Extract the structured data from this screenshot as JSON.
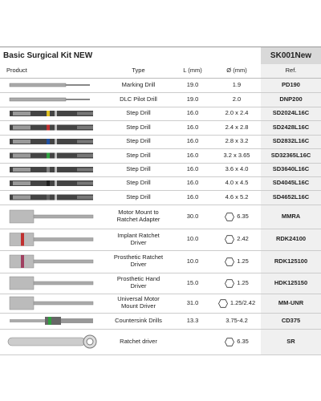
{
  "header": {
    "title": "Basic Surgical Kit NEW",
    "code": "SK001New"
  },
  "table": {
    "columns": [
      "Product",
      "Type",
      "L (mm)",
      "Ø (mm)",
      "Ref."
    ],
    "rows": [
      {
        "type": "Marking Drill",
        "length": "19.0",
        "diameter": "1.9",
        "ref": "PD190",
        "hex_icon": false
      },
      {
        "type": "DLC Pilot Drill",
        "length": "19.0",
        "diameter": "2.0",
        "ref": "DNP200",
        "hex_icon": false
      },
      {
        "type": "Step Drill",
        "length": "16.0",
        "diameter": "2.0 x 2.4",
        "ref": "SD2024L16C",
        "hex_icon": false
      },
      {
        "type": "Step Drill",
        "length": "16.0",
        "diameter": "2.4 x 2.8",
        "ref": "SD2428L16C",
        "hex_icon": false
      },
      {
        "type": "Step Drill",
        "length": "16.0",
        "diameter": "2.8 x 3.2",
        "ref": "SD2832L16C",
        "hex_icon": false
      },
      {
        "type": "Step Drill",
        "length": "16.0",
        "diameter": "3.2 x 3.65",
        "ref": "SD32365L16C",
        "hex_icon": false
      },
      {
        "type": "Step Drill",
        "length": "16.0",
        "diameter": "3.6 x 4.0",
        "ref": "SD3640L16C",
        "hex_icon": false
      },
      {
        "type": "Step Drill",
        "length": "16.0",
        "diameter": "4.0 x 4.5",
        "ref": "SD4045L16C",
        "hex_icon": false
      },
      {
        "type": "Step Drill",
        "length": "16.0",
        "diameter": "4.6 x 5.2",
        "ref": "SD4652L16C",
        "hex_icon": false
      },
      {
        "type": "Motor Mount to Ratchet Adapter",
        "length": "30.0",
        "diameter": "6.35",
        "ref": "MMRA",
        "hex_icon": true
      },
      {
        "type": "Implant Ratchet Driver",
        "length": "10.0",
        "diameter": "2.42",
        "ref": "RDK24100",
        "hex_icon": true
      },
      {
        "type": "Prosthetic Ratchet Driver",
        "length": "10.0",
        "diameter": "1.25",
        "ref": "RDK125100",
        "hex_icon": true
      },
      {
        "type": "Prosthetic Hand Driver",
        "length": "15.0",
        "diameter": "1.25",
        "ref": "HDK125150",
        "hex_icon": true
      },
      {
        "type": "Universal Motor Mount Driver",
        "length": "31.0",
        "diameter": "1.25/2.42",
        "ref": "MM-UNR",
        "hex_icon": true
      },
      {
        "type": "Countersink Drills",
        "length": "13.3",
        "diameter": "3.75-4.2",
        "ref": "CD375",
        "hex_icon": false
      },
      {
        "type": "Ratchet driver",
        "length": "",
        "diameter": "6.35",
        "ref": "SR",
        "hex_icon": true
      }
    ]
  }
}
